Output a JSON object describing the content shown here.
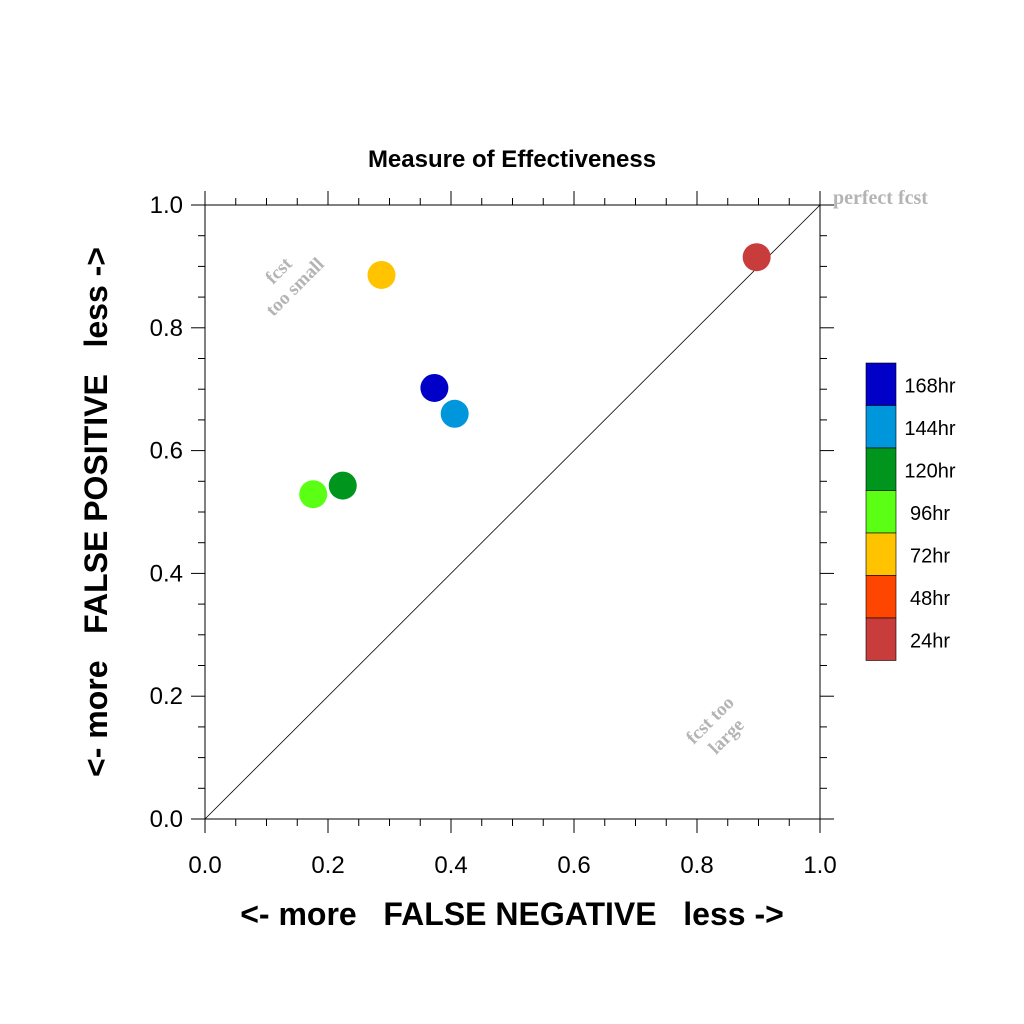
{
  "chart_data": {
    "type": "scatter",
    "title": "Measure of Effectiveness",
    "xlabel": "<- more   FALSE NEGATIVE   less ->",
    "ylabel": "<- more   FALSE POSITIVE   less ->",
    "xlim": [
      0.0,
      1.0
    ],
    "ylim": [
      0.0,
      1.0
    ],
    "xticks": [
      "0.0",
      "0.2",
      "0.4",
      "0.6",
      "0.8",
      "1.0"
    ],
    "yticks": [
      "0.0",
      "0.2",
      "0.4",
      "0.6",
      "0.8",
      "1.0"
    ],
    "grid": false,
    "reference_line": {
      "from": [
        0,
        0
      ],
      "to": [
        1,
        1
      ]
    },
    "annotations": {
      "perfect": "perfect fcst",
      "too_small_line1": "fcst",
      "too_small_line2": "too small",
      "too_large_line1": "fcst too",
      "too_large_line2": "large"
    },
    "legend": {
      "placement": "right",
      "entries": [
        {
          "label": "168hr",
          "color": "#0000c8"
        },
        {
          "label": "144hr",
          "color": "#0096dc"
        },
        {
          "label": "120hr",
          "color": "#00961e"
        },
        {
          "label": "96hr",
          "color": "#5aff14"
        },
        {
          "label": "72hr",
          "color": "#ffc300"
        },
        {
          "label": "48hr",
          "color": "#ff4600"
        },
        {
          "label": "24hr",
          "color": "#c83c3c"
        }
      ]
    },
    "points": [
      {
        "name": "24hr",
        "x": 0.897,
        "y": 0.915,
        "color": "#c83c3c"
      },
      {
        "name": "72hr",
        "x": 0.287,
        "y": 0.886,
        "color": "#ffc300"
      },
      {
        "name": "168hr",
        "x": 0.373,
        "y": 0.702,
        "color": "#0000c8"
      },
      {
        "name": "144hr",
        "x": 0.406,
        "y": 0.66,
        "color": "#0096dc"
      },
      {
        "name": "120hr",
        "x": 0.224,
        "y": 0.543,
        "color": "#00961e"
      },
      {
        "name": "96hr",
        "x": 0.176,
        "y": 0.529,
        "color": "#5aff14"
      }
    ]
  }
}
